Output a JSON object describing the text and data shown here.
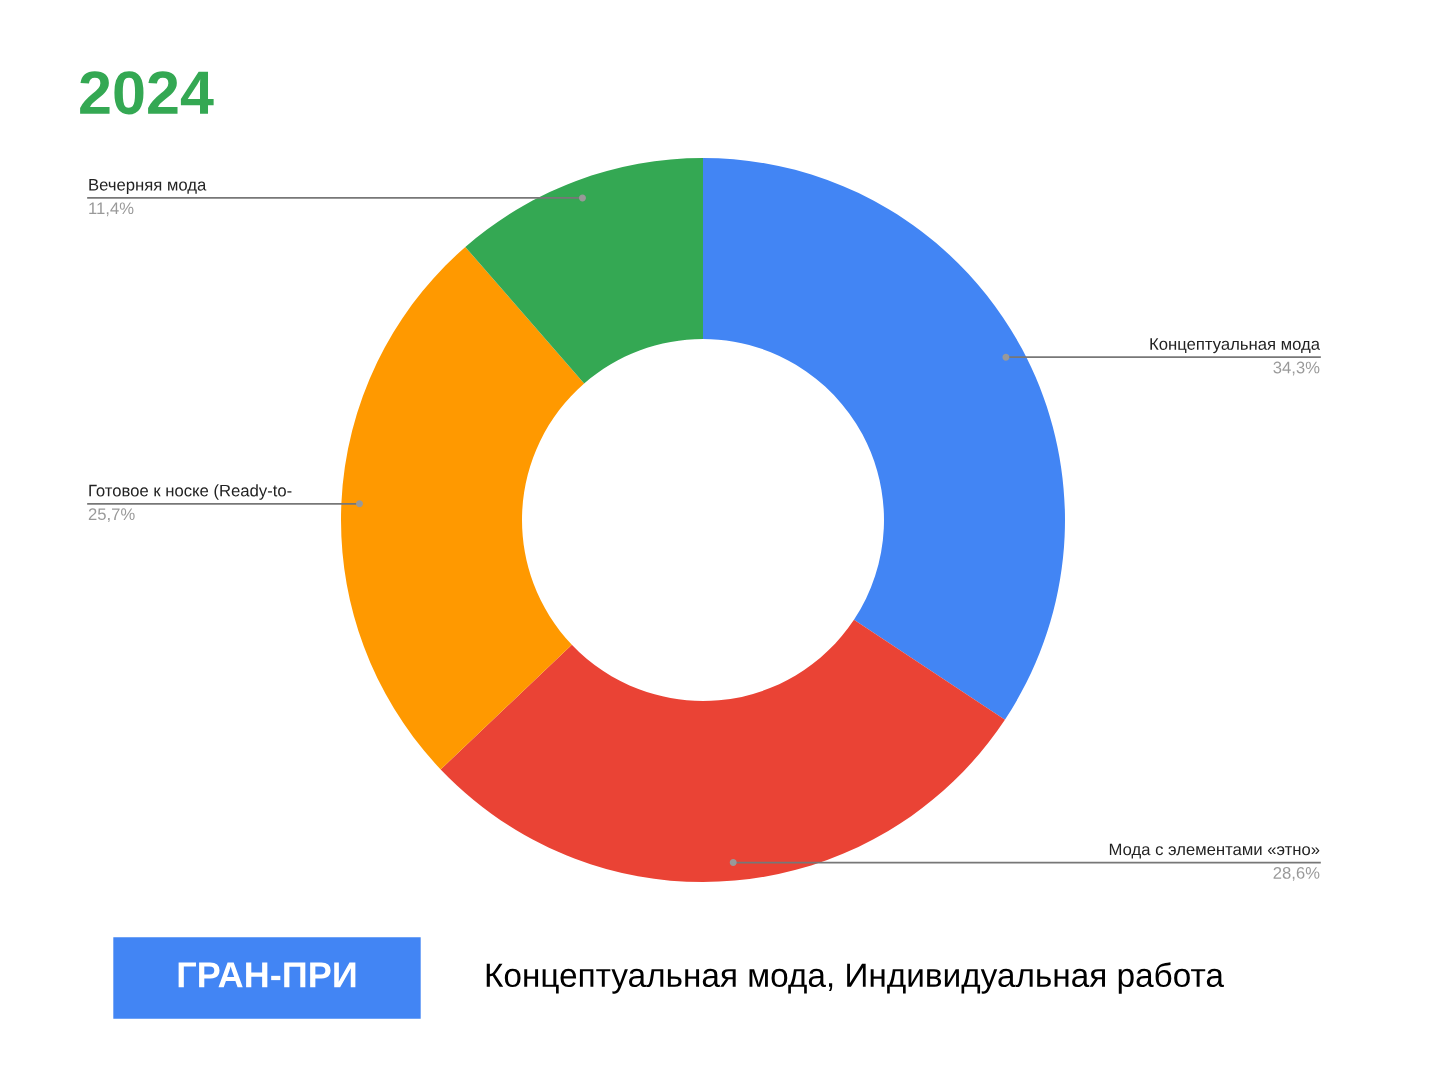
{
  "chart_data": {
    "type": "donut",
    "title": "2024",
    "categories": [
      "Концептуальная мода",
      "Мода с элементами «этно»",
      "Готовое к носке (Ready-to-",
      "Вечерняя мода"
    ],
    "values": [
      34.3,
      28.6,
      25.7,
      11.4
    ],
    "colors": [
      "#4285f4",
      "#ea4335",
      "#ff9900",
      "#34a853"
    ],
    "value_labels": [
      "34,3%",
      "28,6%",
      "25,7%",
      "11,4%"
    ],
    "annotations": [
      "ГРАН-ПРИ",
      "Концептуальная мода, Индивидуальная работа"
    ]
  }
}
